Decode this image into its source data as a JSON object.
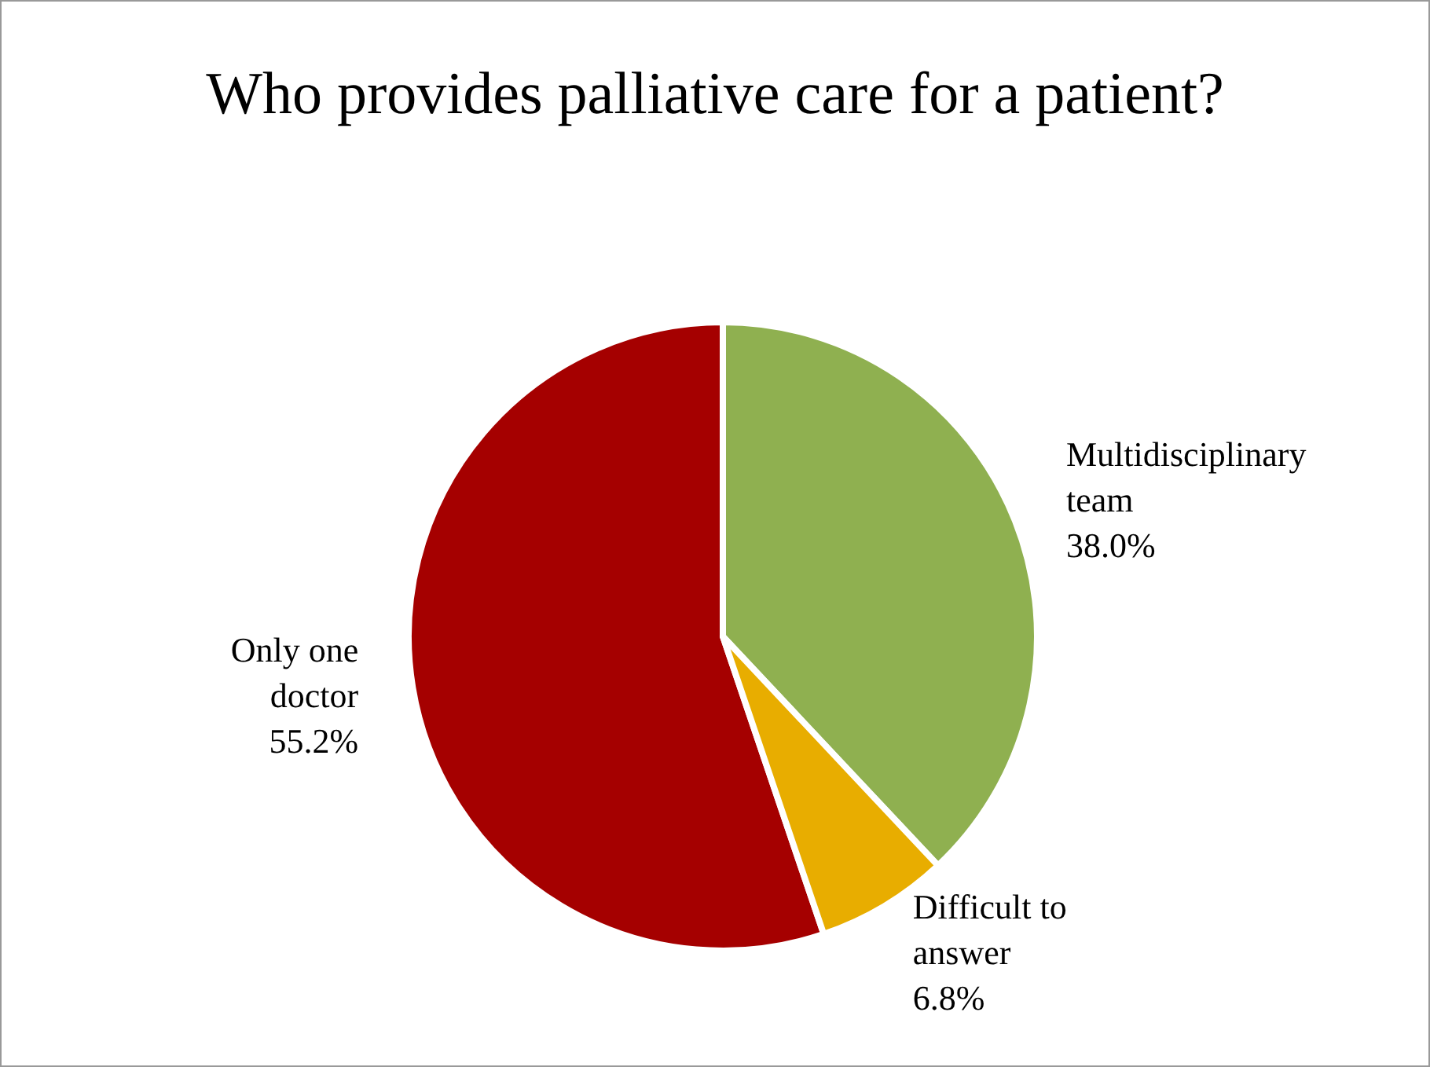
{
  "chart_data": {
    "type": "pie",
    "title": "Who provides palliative care for a patient?",
    "categories": [
      "Only one doctor",
      "Multidisciplinary team",
      "Difficult to answer"
    ],
    "values": [
      55.2,
      38.0,
      6.8
    ],
    "colors": [
      "#a50000",
      "#8fb050",
      "#e8ad00"
    ],
    "value_labels": [
      "55.2%",
      "38.0%",
      "6.8%"
    ],
    "legend": false
  }
}
